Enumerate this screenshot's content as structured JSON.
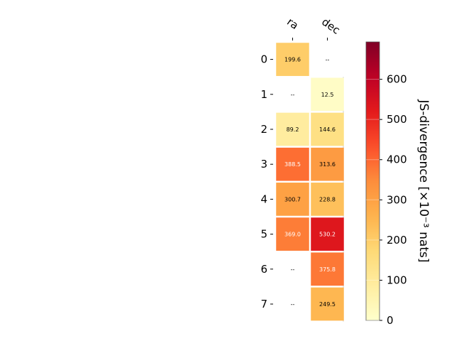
{
  "chart_data": {
    "type": "heatmap",
    "columns": [
      "ra",
      "dec"
    ],
    "rows": [
      "0",
      "1",
      "2",
      "3",
      "4",
      "5",
      "6",
      "7"
    ],
    "values": [
      [
        199.6,
        null
      ],
      [
        null,
        12.5
      ],
      [
        89.2,
        144.6
      ],
      [
        388.5,
        313.6
      ],
      [
        300.7,
        228.8
      ],
      [
        369.0,
        530.2
      ],
      [
        null,
        375.8
      ],
      [
        null,
        249.5
      ]
    ],
    "missing_label": "--",
    "colorbar": {
      "label": "JS-divergence [×10⁻³ nats]",
      "min": 0,
      "max": 693,
      "ticks": [
        "0",
        "100",
        "200",
        "300",
        "400",
        "500",
        "600"
      ],
      "colormap": "YlOrRd"
    }
  }
}
